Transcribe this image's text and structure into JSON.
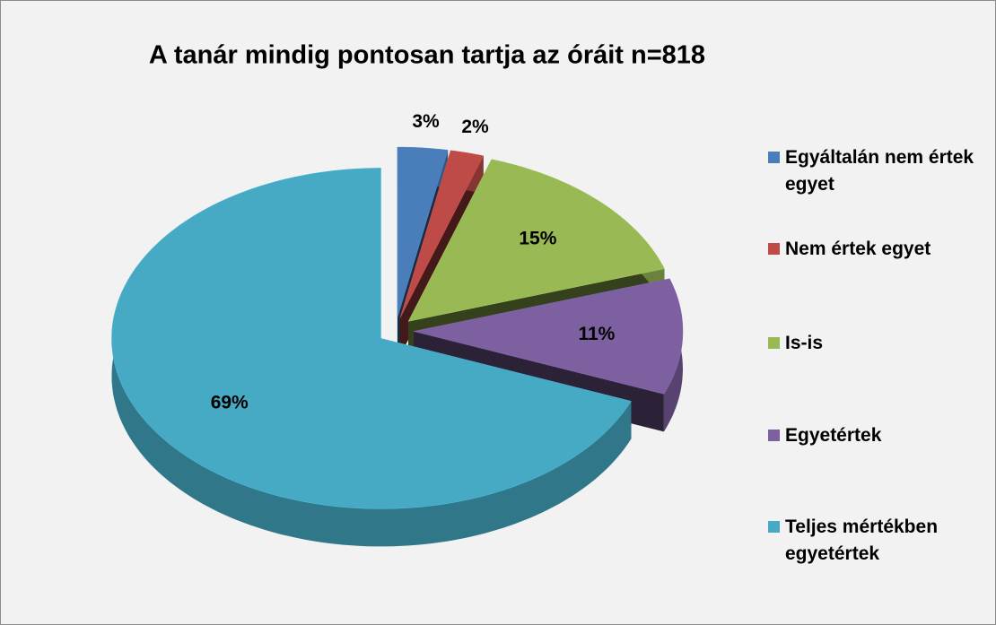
{
  "chart_data": {
    "type": "pie",
    "title": "A tanár mindig pontosan tartja az óráit n=818",
    "categories": [
      "Egyáltalán nem értek egyet",
      "Nem értek egyet",
      "Is-is",
      "Egyetértek",
      "Teljes mértékben egyetértek"
    ],
    "values": [
      3,
      2,
      15,
      11,
      69
    ],
    "value_labels": [
      "3%",
      "2%",
      "15%",
      "11%",
      "69%"
    ],
    "colors": [
      "#4a7ebb",
      "#be4b48",
      "#98b954",
      "#7d60a0",
      "#46aac5"
    ],
    "legend": "right"
  }
}
